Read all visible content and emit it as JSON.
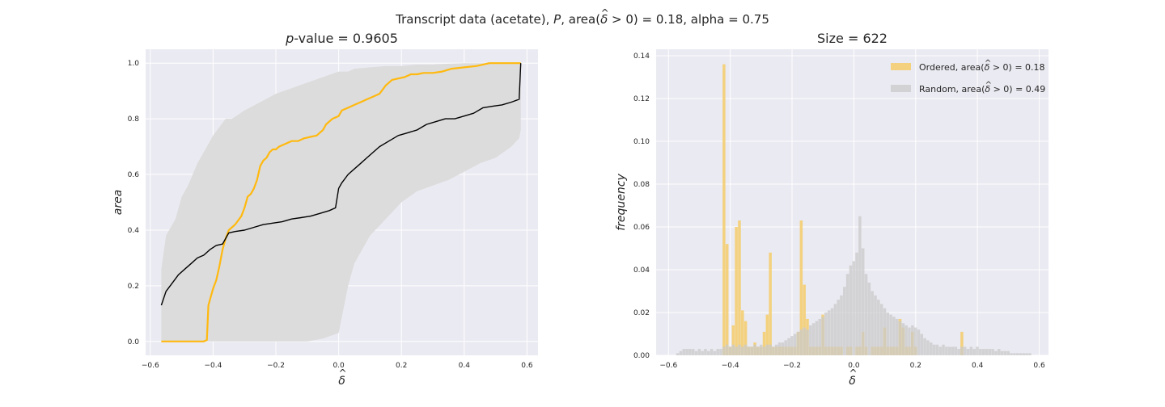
{
  "figure": {
    "suptitle_pre": "Transcript data (acetate), ",
    "suptitle_p": "P",
    "suptitle_mid": ", area(",
    "suptitle_delta": "δ",
    "suptitle_hat": "^",
    "suptitle_post": " > 0) = 0.18, alpha = 0.75"
  },
  "chart_data": [
    {
      "type": "line",
      "title_prefix": "p",
      "title_rest": "-value = 0.9605",
      "xlabel": "δ",
      "xlabel_hat": "^",
      "ylabel": "area",
      "xlim": [
        -0.615,
        0.635
      ],
      "ylim": [
        -0.05,
        1.05
      ],
      "xticks": [
        -0.6,
        -0.4,
        -0.2,
        0.0,
        0.2,
        0.4,
        0.6
      ],
      "xtick_labels": [
        "−0.6",
        "−0.4",
        "−0.2",
        "0.0",
        "0.2",
        "0.4",
        "0.6"
      ],
      "yticks": [
        0.0,
        0.2,
        0.4,
        0.6,
        0.8,
        1.0
      ],
      "ytick_labels": [
        "0.0",
        "0.2",
        "0.4",
        "0.6",
        "0.8",
        "1.0"
      ],
      "grid": true,
      "colors": {
        "ordered": "#ffb90f",
        "random": "#000000",
        "band": "#dcdcdc",
        "bg": "#eaeaf2"
      },
      "band": {
        "x": [
          -0.565,
          -0.55,
          -0.52,
          -0.5,
          -0.48,
          -0.45,
          -0.42,
          -0.4,
          -0.36,
          -0.34,
          -0.3,
          -0.25,
          -0.2,
          -0.15,
          -0.1,
          -0.05,
          0.0,
          0.03,
          0.05,
          0.1,
          0.15,
          0.2,
          0.25,
          0.3,
          0.35,
          0.4,
          0.45,
          0.5,
          0.55,
          0.575,
          0.58
        ],
        "upper": [
          0.26,
          0.38,
          0.44,
          0.52,
          0.56,
          0.64,
          0.7,
          0.74,
          0.8,
          0.8,
          0.83,
          0.86,
          0.89,
          0.91,
          0.93,
          0.95,
          0.97,
          0.97,
          0.98,
          0.985,
          0.99,
          0.99,
          0.995,
          0.995,
          0.998,
          1.0,
          1.0,
          1.0,
          1.0,
          1.0,
          1.0
        ],
        "lower": [
          0.0,
          0.0,
          0.0,
          0.0,
          0.0,
          0.0,
          0.0,
          0.0,
          0.0,
          0.0,
          0.0,
          0.0,
          0.0,
          0.0,
          0.0,
          0.01,
          0.03,
          0.2,
          0.28,
          0.38,
          0.44,
          0.5,
          0.54,
          0.56,
          0.58,
          0.61,
          0.64,
          0.66,
          0.7,
          0.73,
          0.76
        ]
      },
      "series": [
        {
          "name": "ordered",
          "x": [
            -0.565,
            -0.43,
            -0.42,
            -0.415,
            -0.4,
            -0.39,
            -0.38,
            -0.37,
            -0.36,
            -0.35,
            -0.33,
            -0.31,
            -0.3,
            -0.29,
            -0.28,
            -0.27,
            -0.26,
            -0.25,
            -0.24,
            -0.23,
            -0.22,
            -0.21,
            -0.2,
            -0.19,
            -0.17,
            -0.15,
            -0.13,
            -0.11,
            -0.09,
            -0.07,
            -0.05,
            -0.04,
            -0.02,
            0.0,
            0.01,
            0.03,
            0.05,
            0.07,
            0.09,
            0.11,
            0.13,
            0.15,
            0.17,
            0.19,
            0.21,
            0.23,
            0.25,
            0.27,
            0.3,
            0.33,
            0.36,
            0.4,
            0.44,
            0.48,
            0.52,
            0.56,
            0.58
          ],
          "y": [
            0.0,
            0.0,
            0.005,
            0.13,
            0.19,
            0.22,
            0.27,
            0.33,
            0.37,
            0.4,
            0.42,
            0.45,
            0.48,
            0.52,
            0.53,
            0.55,
            0.58,
            0.63,
            0.65,
            0.66,
            0.68,
            0.69,
            0.69,
            0.7,
            0.71,
            0.72,
            0.72,
            0.73,
            0.735,
            0.74,
            0.76,
            0.78,
            0.8,
            0.81,
            0.83,
            0.84,
            0.85,
            0.86,
            0.87,
            0.88,
            0.89,
            0.92,
            0.94,
            0.945,
            0.95,
            0.96,
            0.96,
            0.965,
            0.965,
            0.97,
            0.98,
            0.985,
            0.99,
            1.0,
            1.0,
            1.0,
            1.0
          ]
        },
        {
          "name": "random",
          "x": [
            -0.565,
            -0.55,
            -0.53,
            -0.51,
            -0.49,
            -0.47,
            -0.45,
            -0.43,
            -0.41,
            -0.39,
            -0.37,
            -0.35,
            -0.33,
            -0.3,
            -0.27,
            -0.24,
            -0.21,
            -0.18,
            -0.15,
            -0.12,
            -0.09,
            -0.06,
            -0.03,
            -0.01,
            0.0,
            0.01,
            0.03,
            0.05,
            0.07,
            0.09,
            0.11,
            0.13,
            0.16,
            0.19,
            0.22,
            0.25,
            0.28,
            0.31,
            0.34,
            0.37,
            0.4,
            0.43,
            0.46,
            0.49,
            0.52,
            0.55,
            0.575,
            0.58
          ],
          "y": [
            0.13,
            0.18,
            0.21,
            0.24,
            0.26,
            0.28,
            0.3,
            0.31,
            0.33,
            0.345,
            0.35,
            0.39,
            0.395,
            0.4,
            0.41,
            0.42,
            0.425,
            0.43,
            0.44,
            0.445,
            0.45,
            0.46,
            0.47,
            0.48,
            0.55,
            0.57,
            0.6,
            0.62,
            0.64,
            0.66,
            0.68,
            0.7,
            0.72,
            0.74,
            0.75,
            0.76,
            0.78,
            0.79,
            0.8,
            0.8,
            0.81,
            0.82,
            0.84,
            0.845,
            0.85,
            0.86,
            0.87,
            1.0
          ]
        }
      ]
    },
    {
      "type": "bar",
      "title": "Size = 622",
      "xlabel": "δ",
      "xlabel_hat": "^",
      "ylabel": "frequency",
      "xlim": [
        -0.64,
        0.63
      ],
      "ylim": [
        0.0,
        0.143
      ],
      "xticks": [
        -0.6,
        -0.4,
        -0.2,
        0.0,
        0.2,
        0.4,
        0.6
      ],
      "xtick_labels": [
        "−0.6",
        "−0.4",
        "−0.2",
        "0.0",
        "0.2",
        "0.4",
        "0.6"
      ],
      "yticks": [
        0.0,
        0.02,
        0.04,
        0.06,
        0.08,
        0.1,
        0.12,
        0.14
      ],
      "ytick_labels": [
        "0.00",
        "0.02",
        "0.04",
        "0.06",
        "0.08",
        "0.10",
        "0.12",
        "0.14"
      ],
      "grid": true,
      "legend_position": "top-right",
      "bin_start": -0.575,
      "bin_width": 0.01,
      "colors": {
        "ordered": "#f5cd6a",
        "random": "#c9c9c9",
        "bg": "#eaeaf2"
      },
      "series": [
        {
          "name": "Ordered, area(δ > 0) = 0.18",
          "legend_pre": "Ordered, area(",
          "legend_post": " > 0) = 0.18",
          "values": [
            0.0,
            0.0,
            0.0,
            0.0,
            0.0,
            0.0,
            0.0,
            0.0,
            0.0,
            0.0,
            0.0,
            0.0,
            0.0,
            0.0,
            0.0,
            0.136,
            0.052,
            0.004,
            0.014,
            0.06,
            0.063,
            0.021,
            0.016,
            0.004,
            0.004,
            0.006,
            0.004,
            0.004,
            0.011,
            0.019,
            0.048,
            0.004,
            0.004,
            0.004,
            0.004,
            0.004,
            0.004,
            0.004,
            0.004,
            0.011,
            0.063,
            0.033,
            0.017,
            0.004,
            0.004,
            0.004,
            0.004,
            0.019,
            0.004,
            0.004,
            0.004,
            0.004,
            0.004,
            0.004,
            0.0,
            0.004,
            0.004,
            0.0,
            0.004,
            0.004,
            0.011,
            0.004,
            0.0,
            0.004,
            0.004,
            0.004,
            0.004,
            0.013,
            0.004,
            0.004,
            0.004,
            0.004,
            0.017,
            0.013,
            0.004,
            0.004,
            0.011,
            0.004,
            0.0,
            0.0,
            0.0,
            0.0,
            0.0,
            0.0,
            0.0,
            0.0,
            0.0,
            0.0,
            0.0,
            0.0,
            0.0,
            0.0,
            0.011,
            0.0,
            0.0,
            0.0,
            0.0,
            0.0,
            0.0,
            0.0,
            0.0,
            0.0,
            0.0,
            0.0,
            0.0,
            0.0,
            0.0,
            0.0,
            0.0,
            0.0,
            0.0,
            0.0,
            0.0,
            0.0,
            0.0,
            0.0
          ]
        },
        {
          "name": "Random, area(δ > 0) = 0.49",
          "legend_pre": "Random, area(",
          "legend_post": " > 0) = 0.49",
          "values": [
            0.001,
            0.002,
            0.003,
            0.003,
            0.003,
            0.003,
            0.002,
            0.003,
            0.002,
            0.003,
            0.002,
            0.003,
            0.002,
            0.003,
            0.003,
            0.004,
            0.005,
            0.004,
            0.005,
            0.004,
            0.005,
            0.004,
            0.005,
            0.004,
            0.004,
            0.005,
            0.004,
            0.005,
            0.004,
            0.005,
            0.005,
            0.004,
            0.005,
            0.006,
            0.006,
            0.007,
            0.008,
            0.009,
            0.01,
            0.011,
            0.012,
            0.013,
            0.012,
            0.014,
            0.015,
            0.016,
            0.017,
            0.018,
            0.02,
            0.021,
            0.022,
            0.024,
            0.026,
            0.028,
            0.032,
            0.038,
            0.042,
            0.044,
            0.048,
            0.065,
            0.05,
            0.038,
            0.034,
            0.03,
            0.028,
            0.026,
            0.024,
            0.022,
            0.02,
            0.019,
            0.018,
            0.017,
            0.016,
            0.015,
            0.014,
            0.013,
            0.014,
            0.013,
            0.012,
            0.01,
            0.008,
            0.007,
            0.006,
            0.005,
            0.005,
            0.004,
            0.005,
            0.004,
            0.004,
            0.004,
            0.004,
            0.003,
            0.004,
            0.004,
            0.003,
            0.004,
            0.003,
            0.004,
            0.003,
            0.003,
            0.003,
            0.003,
            0.003,
            0.002,
            0.003,
            0.002,
            0.002,
            0.002,
            0.001,
            0.001,
            0.001,
            0.001,
            0.001,
            0.001,
            0.001
          ]
        }
      ]
    }
  ]
}
